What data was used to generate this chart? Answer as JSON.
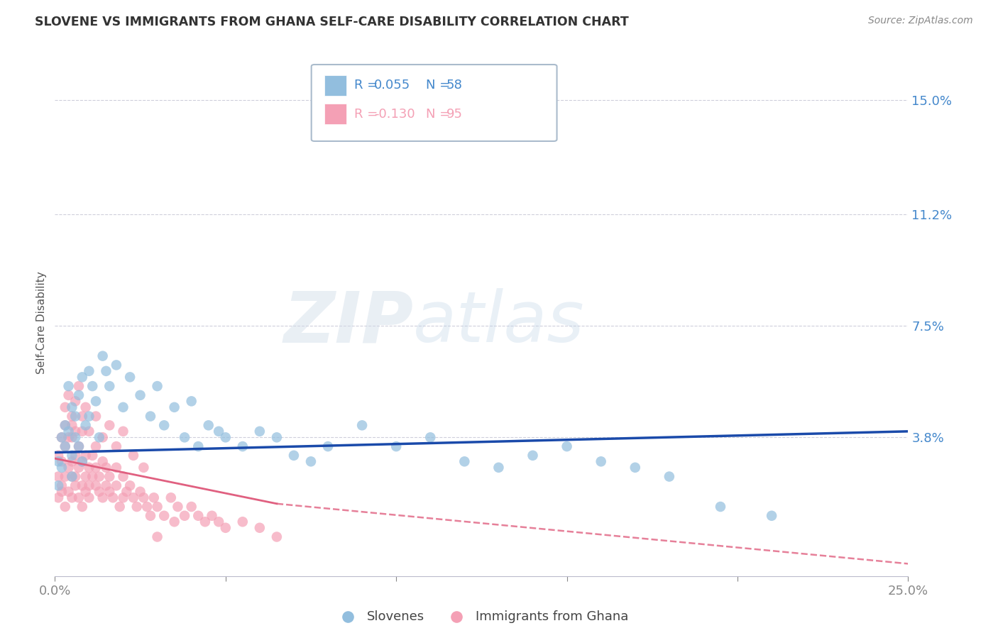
{
  "title": "SLOVENE VS IMMIGRANTS FROM GHANA SELF-CARE DISABILITY CORRELATION CHART",
  "source": "Source: ZipAtlas.com",
  "ylabel": "Self-Care Disability",
  "xlim": [
    0.0,
    0.25
  ],
  "ylim": [
    -0.008,
    0.16
  ],
  "ytick_positions": [
    0.0,
    0.038,
    0.075,
    0.112,
    0.15
  ],
  "ytick_labels": [
    "",
    "3.8%",
    "7.5%",
    "11.2%",
    "15.0%"
  ],
  "grid_yticks": [
    0.038,
    0.075,
    0.112,
    0.15
  ],
  "legend_r1": "R =  0.055",
  "legend_n1": "N = 58",
  "legend_r2": "R = -0.130",
  "legend_n2": "N = 95",
  "slovene_color": "#92bede",
  "ghana_color": "#f4a0b5",
  "trend_blue": "#1a4aaa",
  "trend_pink": "#e06080",
  "background_color": "#ffffff",
  "label_color": "#4488cc",
  "title_color": "#333333",
  "source_color": "#888888",
  "slovene_x": [
    0.001,
    0.001,
    0.002,
    0.002,
    0.003,
    0.003,
    0.004,
    0.004,
    0.005,
    0.005,
    0.005,
    0.006,
    0.006,
    0.007,
    0.007,
    0.008,
    0.008,
    0.009,
    0.01,
    0.01,
    0.011,
    0.012,
    0.013,
    0.014,
    0.015,
    0.016,
    0.018,
    0.02,
    0.022,
    0.025,
    0.028,
    0.03,
    0.032,
    0.035,
    0.038,
    0.04,
    0.042,
    0.045,
    0.048,
    0.05,
    0.055,
    0.06,
    0.065,
    0.07,
    0.075,
    0.08,
    0.09,
    0.1,
    0.11,
    0.12,
    0.13,
    0.14,
    0.15,
    0.16,
    0.17,
    0.18,
    0.195,
    0.21
  ],
  "slovene_y": [
    0.03,
    0.022,
    0.038,
    0.028,
    0.042,
    0.035,
    0.04,
    0.055,
    0.025,
    0.048,
    0.032,
    0.038,
    0.045,
    0.035,
    0.052,
    0.03,
    0.058,
    0.042,
    0.06,
    0.045,
    0.055,
    0.05,
    0.038,
    0.065,
    0.06,
    0.055,
    0.062,
    0.048,
    0.058,
    0.052,
    0.045,
    0.055,
    0.042,
    0.048,
    0.038,
    0.05,
    0.035,
    0.042,
    0.04,
    0.038,
    0.035,
    0.04,
    0.038,
    0.032,
    0.03,
    0.035,
    0.042,
    0.035,
    0.038,
    0.03,
    0.028,
    0.032,
    0.035,
    0.03,
    0.028,
    0.025,
    0.015,
    0.012
  ],
  "ghana_x": [
    0.001,
    0.001,
    0.001,
    0.002,
    0.002,
    0.002,
    0.002,
    0.003,
    0.003,
    0.003,
    0.003,
    0.004,
    0.004,
    0.004,
    0.005,
    0.005,
    0.005,
    0.005,
    0.005,
    0.006,
    0.006,
    0.006,
    0.006,
    0.007,
    0.007,
    0.007,
    0.008,
    0.008,
    0.008,
    0.008,
    0.009,
    0.009,
    0.009,
    0.01,
    0.01,
    0.01,
    0.011,
    0.011,
    0.012,
    0.012,
    0.012,
    0.013,
    0.013,
    0.014,
    0.014,
    0.015,
    0.015,
    0.016,
    0.016,
    0.017,
    0.018,
    0.018,
    0.019,
    0.02,
    0.02,
    0.021,
    0.022,
    0.023,
    0.024,
    0.025,
    0.026,
    0.027,
    0.028,
    0.029,
    0.03,
    0.032,
    0.034,
    0.036,
    0.038,
    0.04,
    0.042,
    0.044,
    0.046,
    0.048,
    0.05,
    0.055,
    0.06,
    0.065,
    0.003,
    0.004,
    0.005,
    0.006,
    0.007,
    0.008,
    0.009,
    0.01,
    0.012,
    0.014,
    0.016,
    0.018,
    0.02,
    0.023,
    0.026,
    0.03,
    0.035
  ],
  "ghana_y": [
    0.018,
    0.025,
    0.032,
    0.022,
    0.03,
    0.038,
    0.02,
    0.025,
    0.035,
    0.042,
    0.015,
    0.028,
    0.038,
    0.02,
    0.025,
    0.03,
    0.018,
    0.038,
    0.045,
    0.025,
    0.032,
    0.022,
    0.04,
    0.028,
    0.035,
    0.018,
    0.022,
    0.03,
    0.04,
    0.015,
    0.025,
    0.032,
    0.02,
    0.028,
    0.022,
    0.018,
    0.025,
    0.032,
    0.028,
    0.022,
    0.035,
    0.02,
    0.025,
    0.03,
    0.018,
    0.022,
    0.028,
    0.025,
    0.02,
    0.018,
    0.022,
    0.028,
    0.015,
    0.025,
    0.018,
    0.02,
    0.022,
    0.018,
    0.015,
    0.02,
    0.018,
    0.015,
    0.012,
    0.018,
    0.015,
    0.012,
    0.018,
    0.015,
    0.012,
    0.015,
    0.012,
    0.01,
    0.012,
    0.01,
    0.008,
    0.01,
    0.008,
    0.005,
    0.048,
    0.052,
    0.042,
    0.05,
    0.055,
    0.045,
    0.048,
    0.04,
    0.045,
    0.038,
    0.042,
    0.035,
    0.04,
    0.032,
    0.028,
    0.005,
    0.01
  ],
  "watermark_zip": "ZIP",
  "watermark_atlas": "atlas",
  "bottom_legend_slovenes": "Slovenes",
  "bottom_legend_ghana": "Immigrants from Ghana"
}
